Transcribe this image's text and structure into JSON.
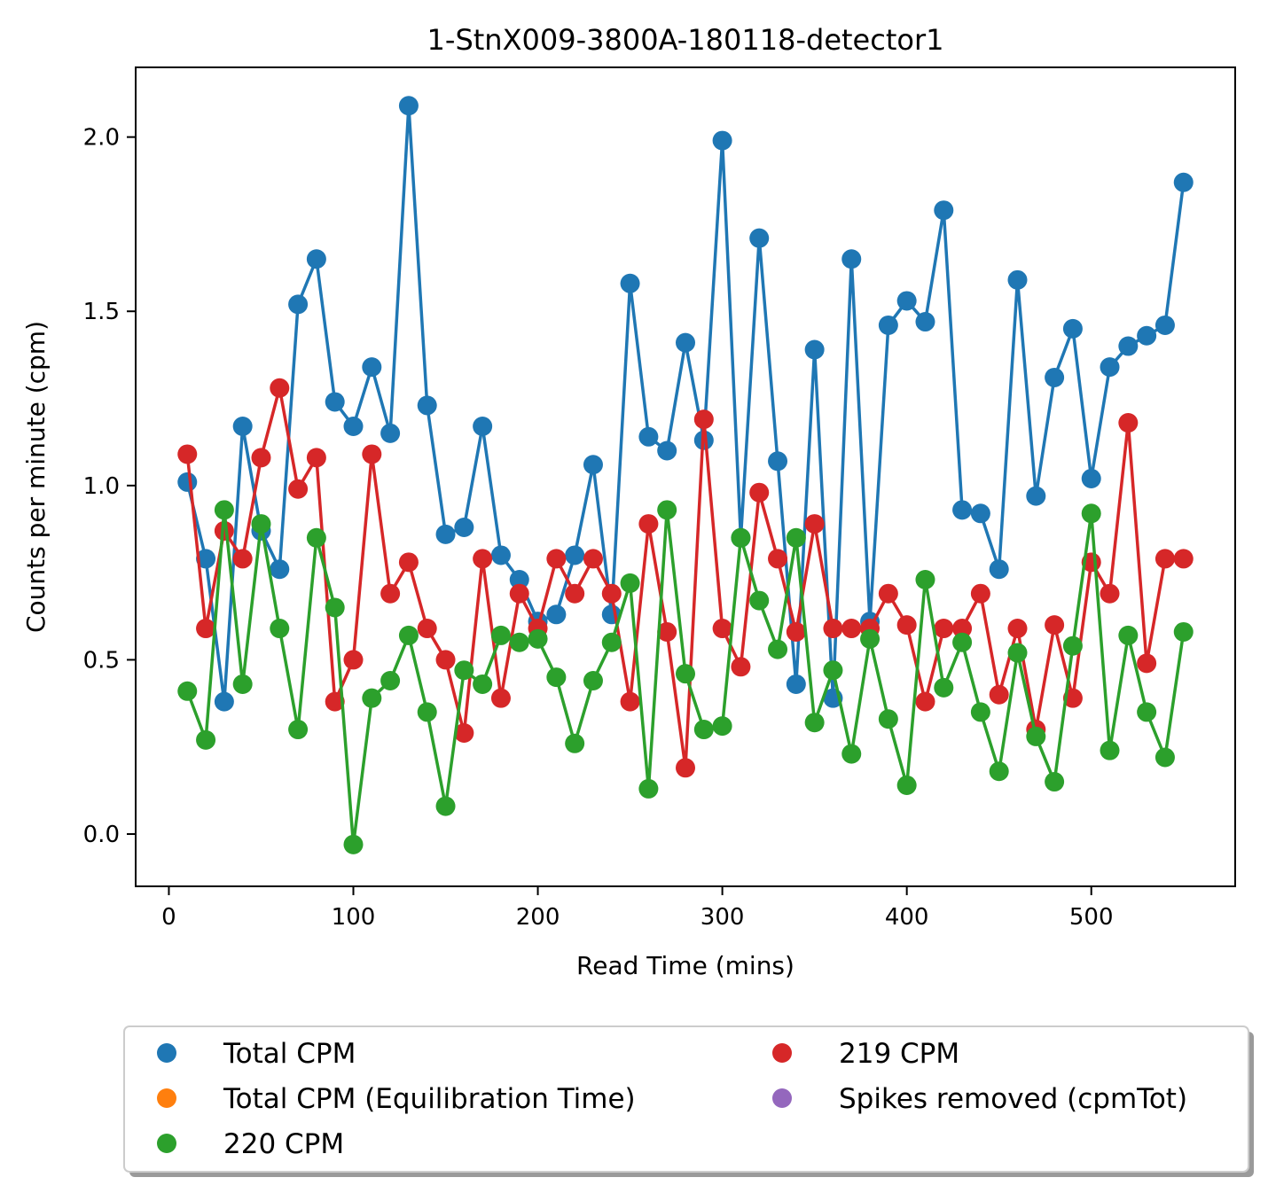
{
  "chart_data": {
    "type": "line",
    "title": "1-StnX009-3800A-180118-detector1",
    "xlabel": "Read Time (mins)",
    "ylabel": "Counts per minute (cpm)",
    "xlim": [
      -18,
      578
    ],
    "ylim": [
      -0.15,
      2.2
    ],
    "xticks": [
      0,
      100,
      200,
      300,
      400,
      500
    ],
    "yticks": [
      0.0,
      0.5,
      1.0,
      1.5,
      2.0
    ],
    "xtick_labels": [
      "0",
      "100",
      "200",
      "300",
      "400",
      "500"
    ],
    "ytick_labels": [
      "0.0",
      "0.5",
      "1.0",
      "1.5",
      "2.0"
    ],
    "grid": false,
    "legend_position": "below-plot",
    "x": [
      10,
      20,
      30,
      40,
      50,
      60,
      70,
      80,
      90,
      100,
      110,
      120,
      130,
      140,
      150,
      160,
      170,
      180,
      190,
      200,
      210,
      220,
      230,
      240,
      250,
      260,
      270,
      280,
      290,
      300,
      310,
      320,
      330,
      340,
      350,
      360,
      370,
      380,
      390,
      400,
      410,
      420,
      430,
      440,
      450,
      460,
      470,
      480,
      490,
      500,
      510,
      520,
      530,
      540,
      550
    ],
    "series": [
      {
        "name": "Total CPM",
        "color": "#1f77b4",
        "values": [
          1.01,
          0.79,
          0.38,
          1.17,
          0.87,
          0.76,
          1.52,
          1.65,
          1.24,
          1.17,
          1.34,
          1.15,
          2.09,
          1.23,
          0.86,
          0.88,
          1.17,
          0.8,
          0.73,
          0.61,
          0.63,
          0.8,
          1.06,
          0.63,
          1.58,
          1.14,
          1.1,
          1.41,
          1.13,
          1.99,
          0.85,
          1.71,
          1.07,
          0.43,
          1.39,
          0.39,
          1.65,
          0.61,
          1.46,
          1.53,
          1.47,
          1.79,
          0.93,
          0.92,
          0.76,
          1.59,
          0.97,
          1.31,
          1.45,
          1.02,
          1.34,
          1.4,
          1.43,
          1.46,
          1.87
        ]
      },
      {
        "name": "219 CPM",
        "color": "#d62728",
        "values": [
          1.09,
          0.59,
          0.87,
          0.79,
          1.08,
          1.28,
          0.99,
          1.08,
          0.38,
          0.5,
          1.09,
          0.69,
          0.78,
          0.59,
          0.5,
          0.29,
          0.79,
          0.39,
          0.69,
          0.59,
          0.79,
          0.69,
          0.79,
          0.69,
          0.38,
          0.89,
          0.58,
          0.19,
          1.19,
          0.59,
          0.48,
          0.98,
          0.79,
          0.58,
          0.89,
          0.59,
          0.59,
          0.59,
          0.69,
          0.6,
          0.38,
          0.59,
          0.59,
          0.69,
          0.4,
          0.59,
          0.3,
          0.6,
          0.39,
          0.78,
          0.69,
          1.18,
          0.49,
          0.79,
          0.79
        ]
      },
      {
        "name": "220 CPM",
        "color": "#2ca02c",
        "values": [
          0.41,
          0.27,
          0.93,
          0.43,
          0.89,
          0.59,
          0.3,
          0.85,
          0.65,
          -0.03,
          0.39,
          0.44,
          0.57,
          0.35,
          0.08,
          0.47,
          0.43,
          0.57,
          0.55,
          0.56,
          0.45,
          0.26,
          0.44,
          0.55,
          0.72,
          0.13,
          0.93,
          0.46,
          0.3,
          0.31,
          0.85,
          0.67,
          0.53,
          0.85,
          0.32,
          0.47,
          0.23,
          0.56,
          0.33,
          0.14,
          0.73,
          0.42,
          0.55,
          0.35,
          0.18,
          0.52,
          0.28,
          0.15,
          0.54,
          0.92,
          0.24,
          0.57,
          0.35,
          0.22,
          0.58
        ]
      }
    ],
    "legend": [
      {
        "label": "Total CPM",
        "color": "#1f77b4"
      },
      {
        "label": "Total CPM (Equilibration Time)",
        "color": "#ff7f0e"
      },
      {
        "label": "220 CPM",
        "color": "#2ca02c"
      },
      {
        "label": "219 CPM",
        "color": "#d62728"
      },
      {
        "label": "Spikes removed (cpmTot)",
        "color": "#9467bd"
      }
    ]
  }
}
